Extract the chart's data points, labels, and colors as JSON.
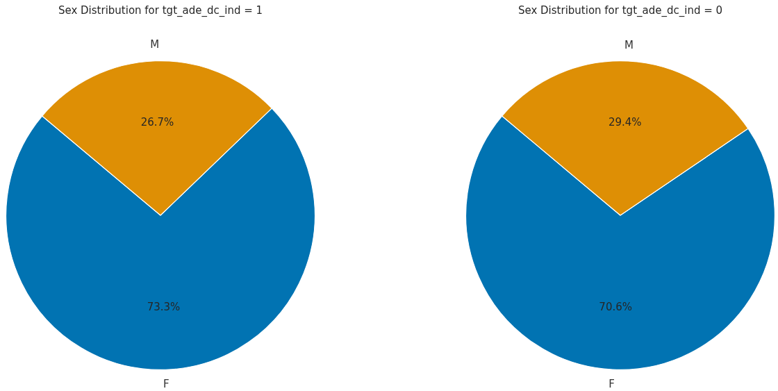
{
  "chart_data": [
    {
      "type": "pie",
      "title": "Sex Distribution for tgt_ade_dc_ind = 1",
      "categories": [
        "F",
        "M"
      ],
      "values": [
        73.3,
        26.7
      ],
      "colors": [
        "#0173b2",
        "#de8f05"
      ],
      "value_labels": [
        "73.3%",
        "26.7%"
      ]
    },
    {
      "type": "pie",
      "title": "Sex Distribution for tgt_ade_dc_ind = 0",
      "categories": [
        "F",
        "M"
      ],
      "values": [
        70.6,
        29.4
      ],
      "colors": [
        "#0173b2",
        "#de8f05"
      ],
      "value_labels": [
        "70.6%",
        "29.4%"
      ]
    }
  ]
}
